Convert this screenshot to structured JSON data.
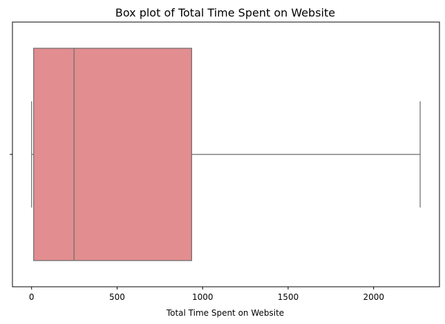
{
  "chart_data": {
    "type": "box",
    "title": "Box plot of Total Time Spent on Website",
    "xlabel": "Total Time Spent on Website",
    "ylabel": "",
    "orientation": "horizontal",
    "xlim": [
      -112,
      2385
    ],
    "xticks": [
      0,
      500,
      1000,
      1500,
      2000
    ],
    "grid": false,
    "box": {
      "whisker_low": 0,
      "q1": 12,
      "median": 248,
      "q3": 936,
      "whisker_high": 2272
    },
    "colors": {
      "box_fill": "#e28d8f",
      "line": "#6b6b6b"
    }
  }
}
